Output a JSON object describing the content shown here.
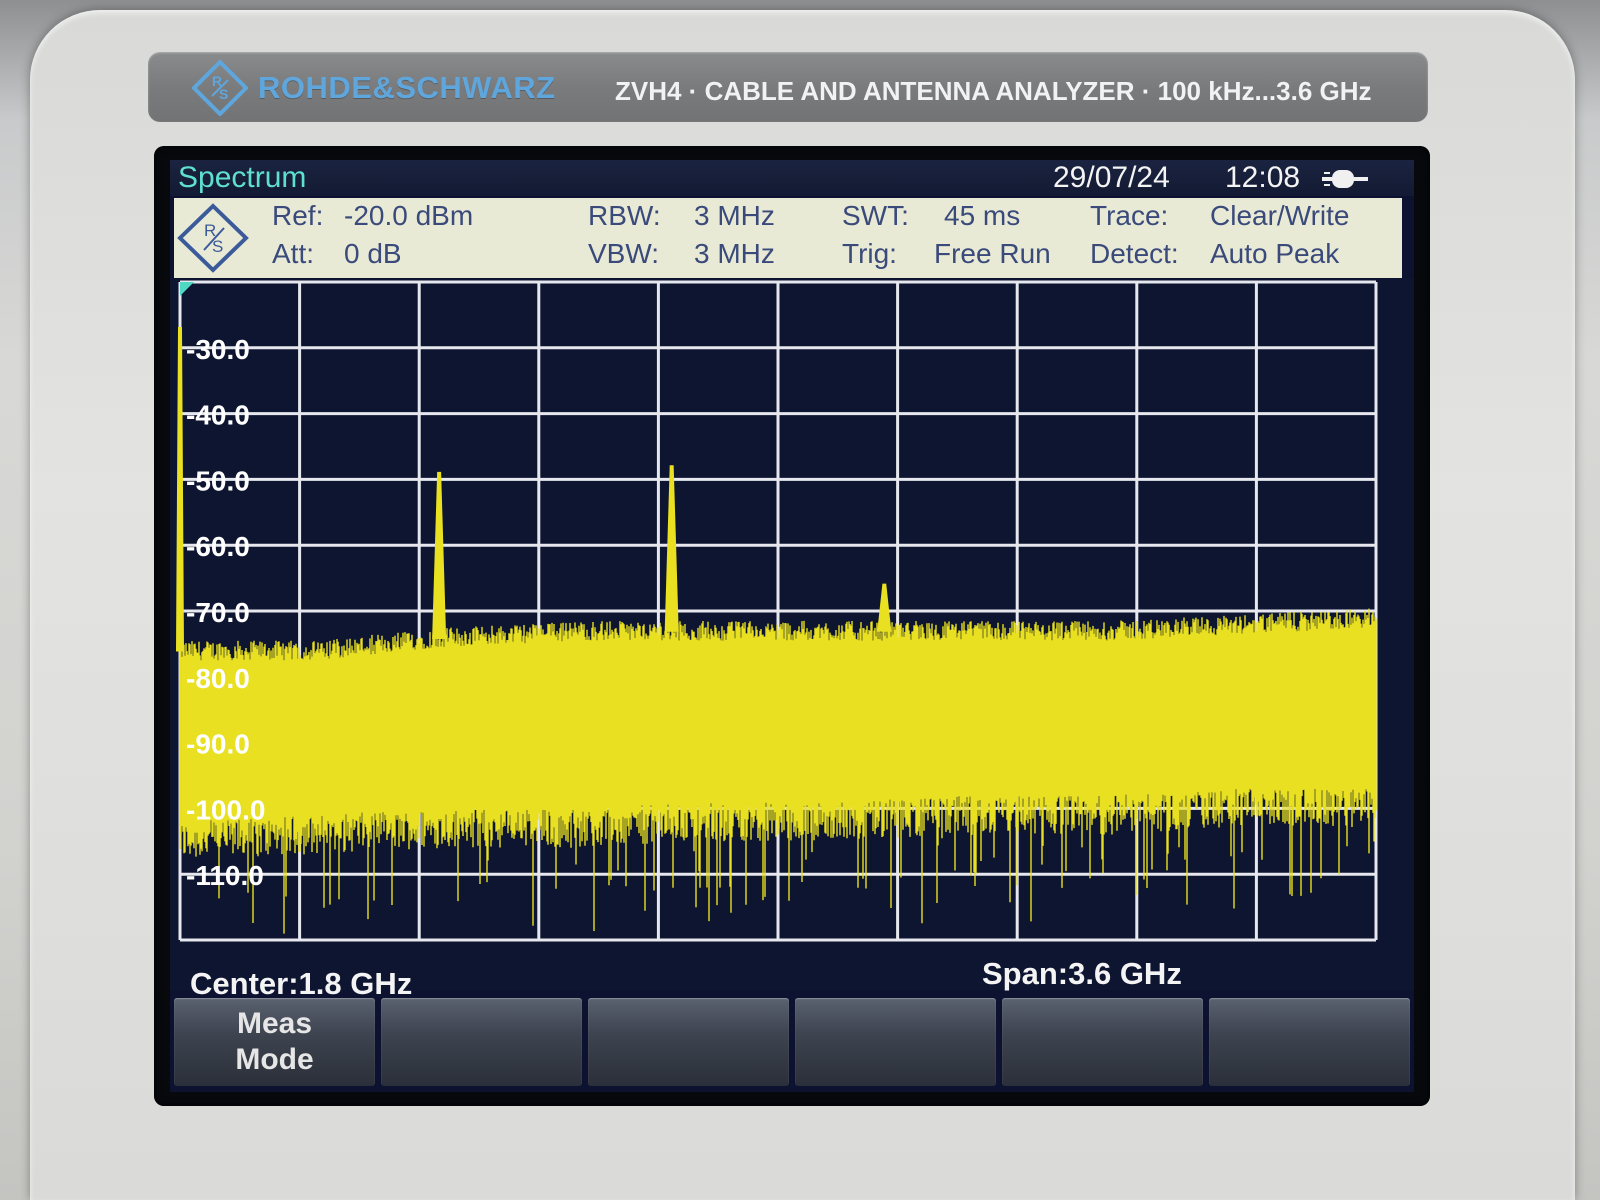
{
  "device": {
    "brand": "ROHDE&SCHWARZ",
    "model_line": "ZVH4 · CABLE AND ANTENNA ANALYZER · 100 kHz...3.6 GHz",
    "brand_color": "#5fa6dd"
  },
  "titlebar": {
    "mode": "Spectrum",
    "date": "29/07/24",
    "time": "12:08",
    "battery_icon": "battery-icon"
  },
  "settings": {
    "ref_label": "Ref:",
    "ref_value": "-20.0 dBm",
    "att_label": "Att:",
    "att_value": "0 dB",
    "rbw_label": "RBW:",
    "rbw_value": "3 MHz",
    "vbw_label": "VBW:",
    "vbw_value": "3 MHz",
    "swt_label": "SWT:",
    "swt_value": "45 ms",
    "trig_label": "Trig:",
    "trig_value": "Free Run",
    "trace_label": "Trace:",
    "trace_value": "Clear/Write",
    "detect_label": "Detect:",
    "detect_value": "Auto Peak"
  },
  "footer": {
    "center": "Center:1.8 GHz",
    "span": "Span:3.6 GHz"
  },
  "softkeys": [
    {
      "line1": "Meas",
      "line2": "Mode"
    },
    {
      "line1": "",
      "line2": ""
    },
    {
      "line1": "",
      "line2": ""
    },
    {
      "line1": "",
      "line2": ""
    },
    {
      "line1": "",
      "line2": ""
    },
    {
      "line1": "",
      "line2": ""
    }
  ],
  "chart_data": {
    "type": "line",
    "title": "",
    "xlabel": "",
    "ylabel": "",
    "x_unit": "GHz",
    "y_unit": "dBm",
    "xlim": [
      0,
      3.6
    ],
    "ylim": [
      -120,
      -20
    ],
    "y_ticks": [
      -30.0,
      -40.0,
      -50.0,
      -60.0,
      -70.0,
      -80.0,
      -90.0,
      -100.0,
      -110.0
    ],
    "y_tick_labels": [
      "-30.0",
      "-40.0",
      "-50.0",
      "-60.0",
      "-70.0",
      "-80.0",
      "-90.0",
      "-100.0",
      "-110.0"
    ],
    "x_divisions": 10,
    "grid": true,
    "trace_color": "#e8e020",
    "noise_floor_max": {
      "x": [
        0.0,
        0.4,
        0.8,
        1.2,
        1.6,
        2.0,
        2.4,
        2.8,
        3.2,
        3.6
      ],
      "values": [
        -76,
        -76,
        -74,
        -73,
        -73,
        -73,
        -73,
        -73,
        -72,
        -71
      ]
    },
    "noise_floor_min": {
      "x": [
        0.0,
        0.4,
        0.8,
        1.2,
        1.6,
        2.0,
        2.4,
        2.8,
        3.2,
        3.6
      ],
      "values": [
        -105,
        -104,
        -103,
        -103,
        -102,
        -102,
        -101,
        -101,
        -100,
        -100
      ]
    },
    "peaks": [
      {
        "x": 0.0,
        "value": -27
      },
      {
        "x": 0.78,
        "value": -49
      },
      {
        "x": 1.48,
        "value": -48
      },
      {
        "x": 2.12,
        "value": -66
      }
    ]
  }
}
